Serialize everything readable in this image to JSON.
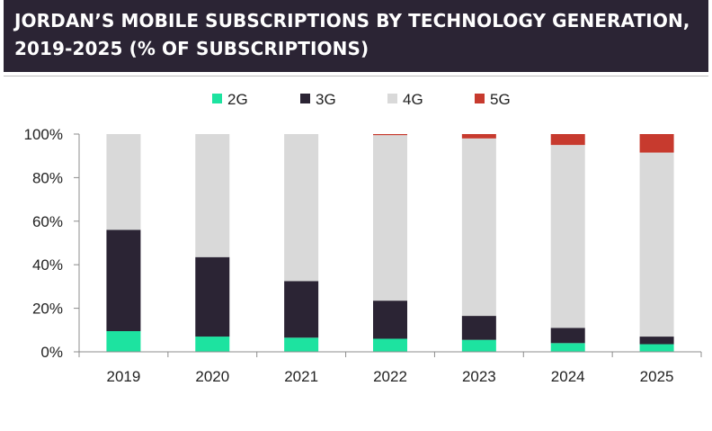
{
  "title_lines": [
    "JORDAN’S MOBILE SUBSCRIPTIONS BY TECHNOLOGY GENERATION,",
    "2019-2025 (% OF SUBSCRIPTIONS)"
  ],
  "chart_data": {
    "type": "bar",
    "stacked": true,
    "title": "JORDAN’S MOBILE SUBSCRIPTIONS BY TECHNOLOGY GENERATION, 2019-2025 (% OF SUBSCRIPTIONS)",
    "categories": [
      "2019",
      "2020",
      "2021",
      "2022",
      "2023",
      "2024",
      "2025"
    ],
    "series": [
      {
        "name": "2G",
        "color": "#1de3a0",
        "values": [
          9.5,
          7.0,
          6.5,
          6.0,
          5.5,
          4.0,
          3.5
        ]
      },
      {
        "name": "3G",
        "color": "#2b2434",
        "values": [
          46.5,
          36.5,
          26.0,
          17.5,
          11.0,
          7.0,
          3.5
        ]
      },
      {
        "name": "4G",
        "color": "#d9d9d9",
        "values": [
          44.0,
          56.5,
          67.5,
          76.0,
          81.5,
          84.0,
          84.5
        ]
      },
      {
        "name": "5G",
        "color": "#c73a2e",
        "values": [
          0.0,
          0.0,
          0.0,
          0.5,
          2.0,
          5.0,
          8.5
        ]
      }
    ],
    "ylim": [
      0,
      100
    ],
    "yticks": [
      "0%",
      "20%",
      "40%",
      "60%",
      "80%",
      "100%"
    ],
    "xlabel": "",
    "ylabel": "",
    "legend_position": "top",
    "grid": false
  }
}
